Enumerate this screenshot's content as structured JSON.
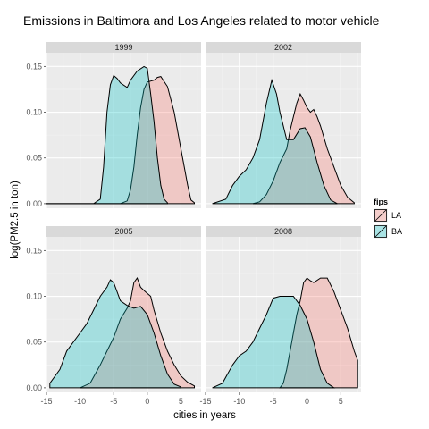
{
  "chart_data": {
    "type": "area",
    "subtype": "density-facets",
    "title": "Emissions in Baltimora and Los Angeles related to motor vehicle",
    "xlabel": "cities in years",
    "ylabel": "log(PM2.5 in ton)",
    "xlim": [
      -15,
      8
    ],
    "ylim": [
      -0.005,
      0.165
    ],
    "x_ticks": [
      -15,
      -10,
      -5,
      0,
      5
    ],
    "y_ticks": [
      0.0,
      0.05,
      0.1,
      0.15
    ],
    "x_tick_labels": [
      "-15",
      "-10",
      "-5",
      "0",
      "5"
    ],
    "y_tick_labels": [
      "0.00",
      "0.05",
      "0.10",
      "0.15"
    ],
    "grid": true,
    "legend": {
      "title": "fips",
      "position": "right",
      "entries": [
        {
          "label": "LA",
          "color": "#F8766D"
        },
        {
          "label": "BA",
          "color": "#00BFC4"
        }
      ]
    },
    "facets": [
      {
        "label": "1999",
        "series": [
          {
            "name": "LA",
            "color": "#F8766D",
            "points": [
              [
                -15,
                0
              ],
              [
                -4,
                0
              ],
              [
                -3,
                0.003
              ],
              [
                -2.5,
                0.015
              ],
              [
                -2,
                0.04
              ],
              [
                -1.5,
                0.075
              ],
              [
                -1,
                0.105
              ],
              [
                -0.5,
                0.125
              ],
              [
                0,
                0.133
              ],
              [
                1,
                0.135
              ],
              [
                1.5,
                0.138
              ],
              [
                2,
                0.139
              ],
              [
                3,
                0.128
              ],
              [
                4,
                0.1
              ],
              [
                5,
                0.06
              ],
              [
                5.5,
                0.04
              ],
              [
                6,
                0.02
              ],
              [
                6.5,
                0.004
              ],
              [
                7,
                0.001
              ]
            ]
          },
          {
            "name": "BA",
            "color": "#00BFC4",
            "points": [
              [
                -15,
                0
              ],
              [
                -8,
                0
              ],
              [
                -7,
                0.005
              ],
              [
                -6.5,
                0.04
              ],
              [
                -6,
                0.1
              ],
              [
                -5.5,
                0.13
              ],
              [
                -5,
                0.14
              ],
              [
                -4.5,
                0.137
              ],
              [
                -4,
                0.132
              ],
              [
                -3,
                0.127
              ],
              [
                -2.5,
                0.135
              ],
              [
                -1.5,
                0.145
              ],
              [
                -0.5,
                0.15
              ],
              [
                0,
                0.148
              ],
              [
                0.5,
                0.12
              ],
              [
                1,
                0.09
              ],
              [
                1.5,
                0.05
              ],
              [
                2,
                0.02
              ],
              [
                2.5,
                0.005
              ],
              [
                3,
                0.001
              ]
            ]
          }
        ]
      },
      {
        "label": "2002",
        "series": [
          {
            "name": "LA",
            "color": "#F8766D",
            "points": [
              [
                -8,
                0
              ],
              [
                -7,
                0.002
              ],
              [
                -6,
                0.01
              ],
              [
                -5,
                0.025
              ],
              [
                -4,
                0.045
              ],
              [
                -3,
                0.06
              ],
              [
                -2.5,
                0.08
              ],
              [
                -2,
                0.095
              ],
              [
                -1.5,
                0.11
              ],
              [
                -1,
                0.12
              ],
              [
                -0.5,
                0.113
              ],
              [
                0,
                0.105
              ],
              [
                0.5,
                0.1
              ],
              [
                1,
                0.103
              ],
              [
                1.5,
                0.095
              ],
              [
                2,
                0.085
              ],
              [
                3,
                0.06
              ],
              [
                4,
                0.04
              ],
              [
                5,
                0.02
              ],
              [
                6,
                0.007
              ],
              [
                7,
                0.001
              ]
            ]
          },
          {
            "name": "BA",
            "color": "#00BFC4",
            "points": [
              [
                -14,
                0
              ],
              [
                -12,
                0.005
              ],
              [
                -11,
                0.02
              ],
              [
                -10,
                0.03
              ],
              [
                -9,
                0.037
              ],
              [
                -8,
                0.05
              ],
              [
                -7,
                0.07
              ],
              [
                -6,
                0.11
              ],
              [
                -5.2,
                0.135
              ],
              [
                -4.5,
                0.12
              ],
              [
                -4,
                0.1
              ],
              [
                -3,
                0.07
              ],
              [
                -2,
                0.07
              ],
              [
                -1,
                0.082
              ],
              [
                -0.3,
                0.083
              ],
              [
                0.5,
                0.073
              ],
              [
                1.5,
                0.045
              ],
              [
                2.5,
                0.02
              ],
              [
                3.5,
                0.004
              ],
              [
                4.5,
                0
              ]
            ]
          }
        ]
      },
      {
        "label": "2005",
        "series": [
          {
            "name": "LA",
            "color": "#F8766D",
            "points": [
              [
                -10,
                0
              ],
              [
                -8.5,
                0.005
              ],
              [
                -7,
                0.025
              ],
              [
                -6,
                0.04
              ],
              [
                -5,
                0.055
              ],
              [
                -4,
                0.075
              ],
              [
                -3,
                0.087
              ],
              [
                -2.5,
                0.095
              ],
              [
                -2,
                0.115
              ],
              [
                -1.5,
                0.12
              ],
              [
                -1,
                0.11
              ],
              [
                -0.3,
                0.105
              ],
              [
                0.5,
                0.1
              ],
              [
                1,
                0.085
              ],
              [
                2,
                0.06
              ],
              [
                3,
                0.04
              ],
              [
                4,
                0.025
              ],
              [
                5,
                0.013
              ],
              [
                6,
                0.006
              ],
              [
                7,
                0.002
              ]
            ]
          },
          {
            "name": "BA",
            "color": "#00BFC4",
            "points": [
              [
                -14.5,
                0.005
              ],
              [
                -13,
                0.02
              ],
              [
                -12,
                0.04
              ],
              [
                -11,
                0.05
              ],
              [
                -10,
                0.06
              ],
              [
                -9,
                0.07
              ],
              [
                -8,
                0.085
              ],
              [
                -7,
                0.1
              ],
              [
                -6,
                0.11
              ],
              [
                -5.5,
                0.118
              ],
              [
                -5,
                0.115
              ],
              [
                -4.5,
                0.105
              ],
              [
                -4,
                0.095
              ],
              [
                -3,
                0.09
              ],
              [
                -2,
                0.087
              ],
              [
                -1,
                0.089
              ],
              [
                0,
                0.08
              ],
              [
                1,
                0.06
              ],
              [
                2,
                0.035
              ],
              [
                3,
                0.015
              ],
              [
                4,
                0.004
              ],
              [
                5,
                0.001
              ]
            ]
          }
        ]
      },
      {
        "label": "2008",
        "series": [
          {
            "name": "LA",
            "color": "#F8766D",
            "points": [
              [
                -4,
                0
              ],
              [
                -3.5,
                0.005
              ],
              [
                -3,
                0.02
              ],
              [
                -2.5,
                0.04
              ],
              [
                -2,
                0.06
              ],
              [
                -1.5,
                0.08
              ],
              [
                -1,
                0.095
              ],
              [
                -0.5,
                0.115
              ],
              [
                0,
                0.12
              ],
              [
                0.5,
                0.117
              ],
              [
                1,
                0.115
              ],
              [
                2,
                0.12
              ],
              [
                3,
                0.12
              ],
              [
                4,
                0.105
              ],
              [
                5,
                0.085
              ],
              [
                6,
                0.065
              ],
              [
                7,
                0.04
              ],
              [
                7.5,
                0.03
              ]
            ]
          },
          {
            "name": "BA",
            "color": "#00BFC4",
            "points": [
              [
                -14,
                0
              ],
              [
                -12.5,
                0.005
              ],
              [
                -11,
                0.025
              ],
              [
                -10,
                0.035
              ],
              [
                -9,
                0.04
              ],
              [
                -8,
                0.05
              ],
              [
                -7,
                0.065
              ],
              [
                -6,
                0.08
              ],
              [
                -5,
                0.098
              ],
              [
                -4,
                0.1
              ],
              [
                -3,
                0.1
              ],
              [
                -2,
                0.1
              ],
              [
                -1,
                0.09
              ],
              [
                0,
                0.075
              ],
              [
                1,
                0.05
              ],
              [
                2,
                0.02
              ],
              [
                3,
                0.005
              ],
              [
                4,
                0
              ]
            ]
          }
        ]
      }
    ]
  }
}
